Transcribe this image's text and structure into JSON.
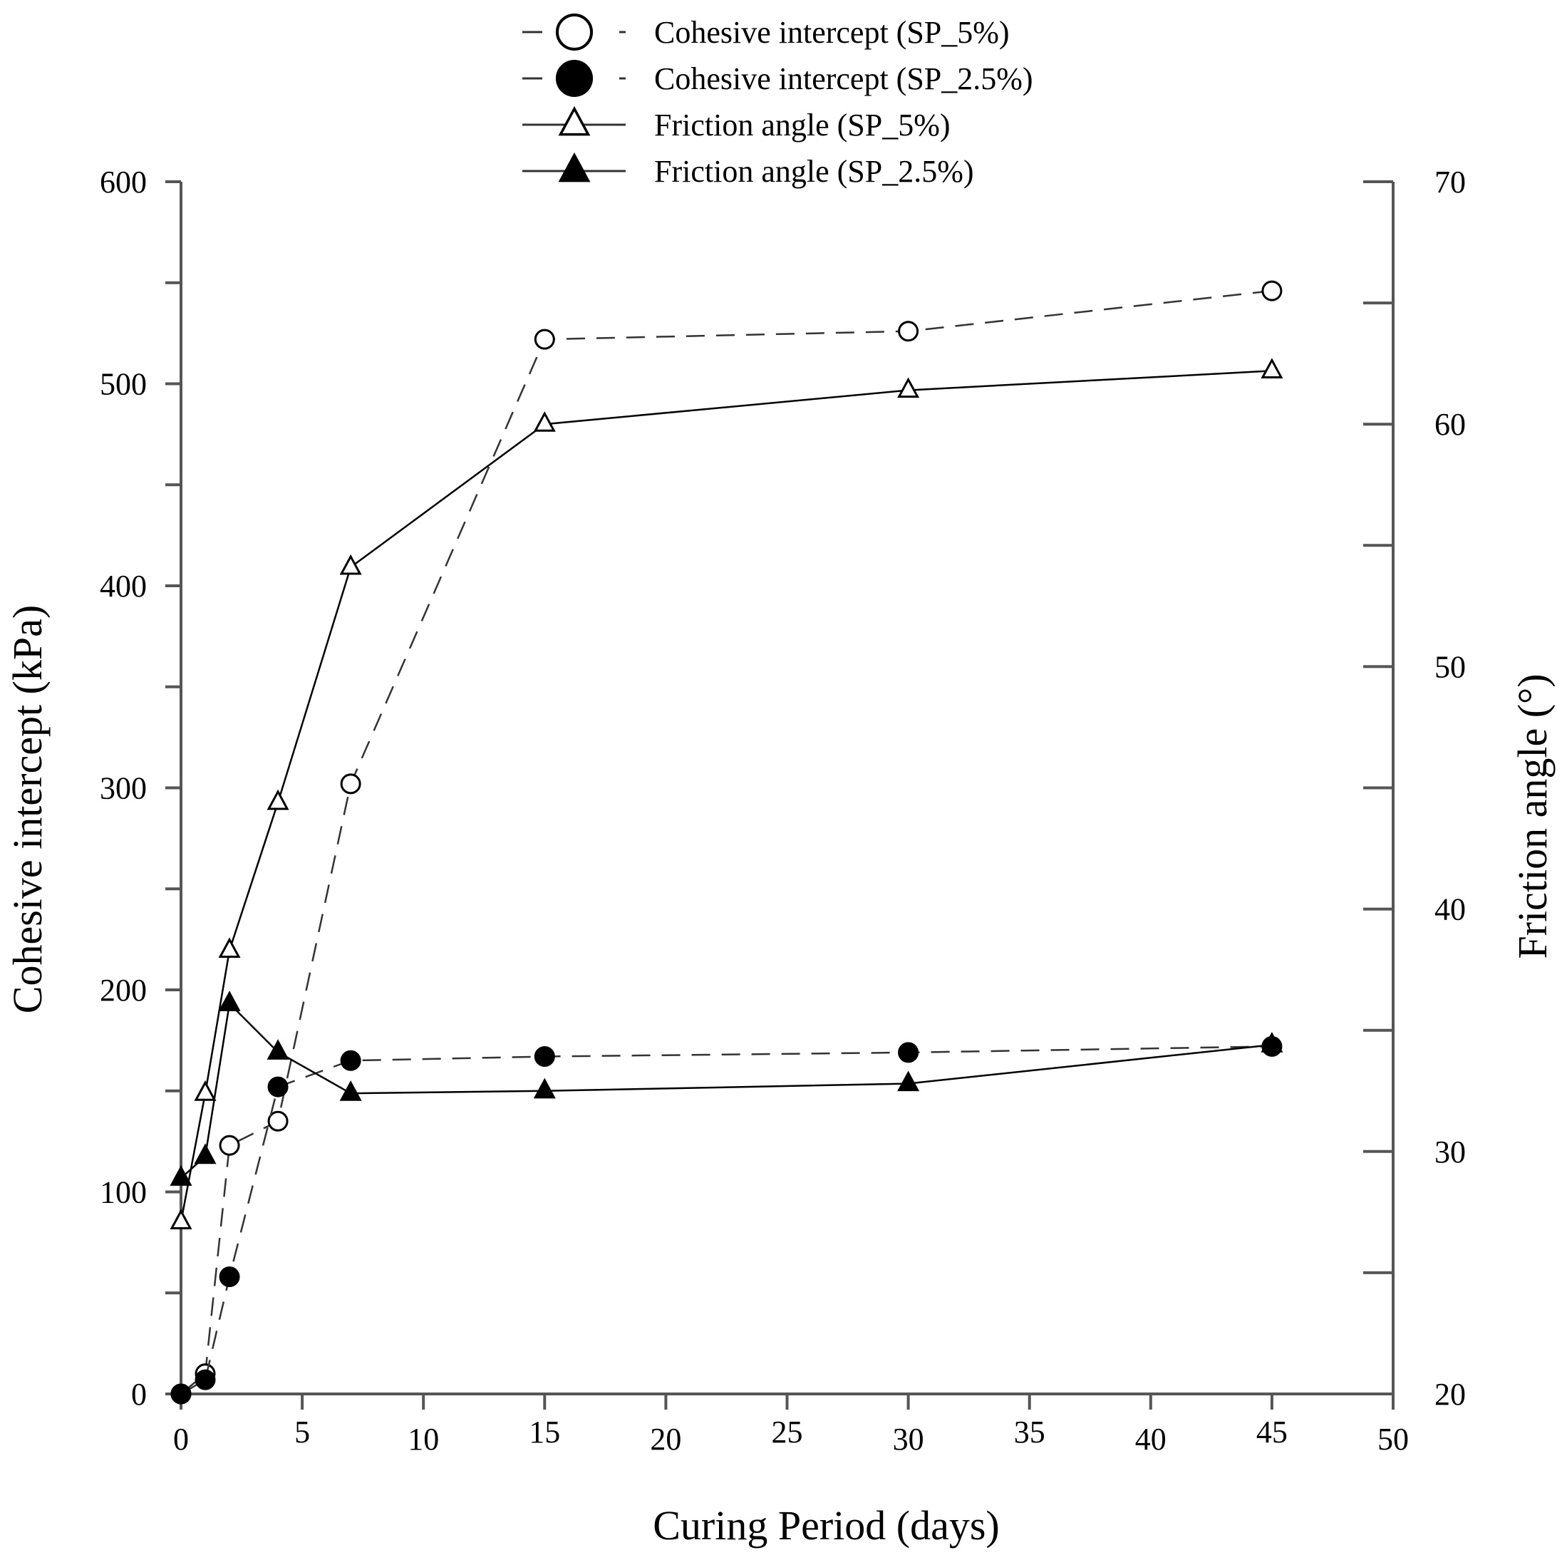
{
  "chart_data": {
    "type": "line",
    "title": "",
    "xlabel": "Curing Period (days)",
    "ylabel_left": "Cohesive intercept (kPa)",
    "ylabel_right": "Friction angle (°)",
    "xlim": [
      0,
      50
    ],
    "ylim_left": [
      0,
      600
    ],
    "ylim_right": [
      20,
      70
    ],
    "x_ticks": [
      0,
      5,
      10,
      15,
      20,
      25,
      30,
      35,
      40,
      45,
      50
    ],
    "y_left_ticks": [
      0,
      100,
      200,
      300,
      400,
      500,
      600
    ],
    "y_right_ticks": [
      20,
      30,
      40,
      50,
      60,
      70
    ],
    "grid": false,
    "legend_position": "top-center",
    "series": [
      {
        "name": "Cohesive intercept (SP_5%)",
        "axis": "left",
        "line": "dashed",
        "marker": "circle-open",
        "color": "#000000",
        "x": [
          0,
          1,
          2,
          4,
          7,
          15,
          30,
          45
        ],
        "values": [
          0,
          10,
          123,
          135,
          302,
          522,
          526,
          546
        ]
      },
      {
        "name": "Cohesive intercept (SP_2.5%)",
        "axis": "left",
        "line": "dashed",
        "marker": "circle-filled",
        "color": "#000000",
        "x": [
          0,
          1,
          2,
          4,
          7,
          15,
          30,
          45
        ],
        "values": [
          0,
          7,
          58,
          152,
          165,
          167,
          169,
          172
        ]
      },
      {
        "name": "Friction angle (SP_5%)",
        "axis": "right",
        "line": "solid",
        "marker": "triangle-open",
        "color": "#000000",
        "x": [
          0,
          1,
          2,
          4,
          7,
          15,
          30,
          45
        ],
        "values": [
          27.1,
          32.4,
          38.3,
          44.4,
          54.1,
          60.0,
          61.4,
          62.2
        ]
      },
      {
        "name": "Friction angle (SP_2.5%)",
        "axis": "right",
        "line": "solid",
        "marker": "triangle-filled",
        "color": "#000000",
        "x": [
          0,
          1,
          2,
          4,
          7,
          15,
          30,
          45
        ],
        "values": [
          28.9,
          29.8,
          36.1,
          34.1,
          32.4,
          32.5,
          32.8,
          34.4
        ]
      }
    ]
  }
}
